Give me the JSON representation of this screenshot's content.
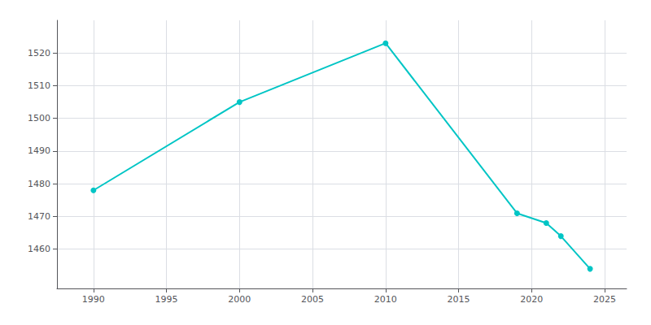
{
  "chart_data": {
    "type": "line",
    "x": [
      1990,
      2000,
      2010,
      2019,
      2021,
      2022,
      2024
    ],
    "values": [
      1478,
      1505,
      1523,
      1471,
      1468,
      1464,
      1454
    ],
    "color": "#00C5C5",
    "marker": "circle",
    "xlim": [
      1987.5,
      2026.5
    ],
    "ylim": [
      1448,
      1530
    ],
    "xticks": [
      1990,
      1995,
      2000,
      2005,
      2010,
      2015,
      2020,
      2025
    ],
    "yticks": [
      1460,
      1470,
      1480,
      1490,
      1500,
      1510,
      1520
    ],
    "grid": true
  }
}
